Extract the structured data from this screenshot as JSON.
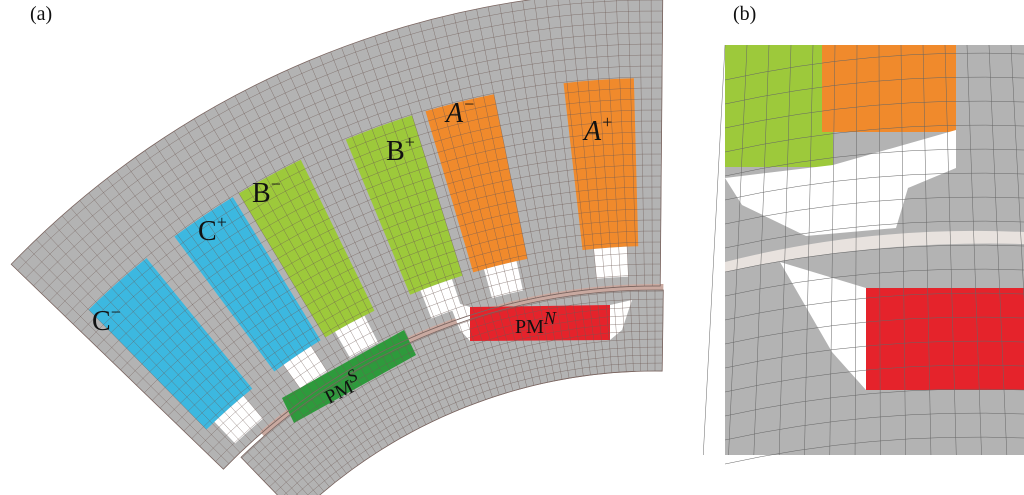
{
  "panels": {
    "a": {
      "label": "(a)",
      "slots": [
        {
          "name": "C",
          "sup": "−"
        },
        {
          "name": "C",
          "sup": "+"
        },
        {
          "name": "B",
          "sup": "−"
        },
        {
          "name": "B",
          "sup": "+"
        },
        {
          "name": "A",
          "sup": "−"
        },
        {
          "name": "A",
          "sup": "+"
        }
      ],
      "magnets": [
        {
          "name": "PM",
          "sup": "S"
        },
        {
          "name": "PM",
          "sup": "N"
        }
      ]
    },
    "b": {
      "label": "(b)"
    }
  }
}
